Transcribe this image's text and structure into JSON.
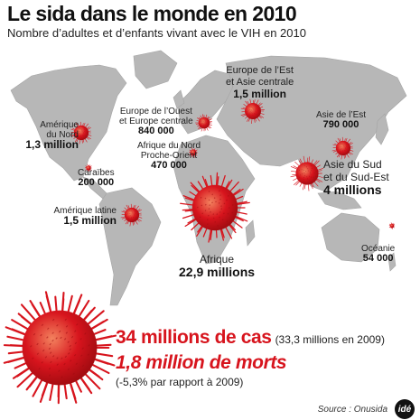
{
  "header": {
    "title": "Le sida dans le monde en 2010",
    "subtitle": "Nombre d’adultes et d’enfants vivant avec le VIH en 2010"
  },
  "colors": {
    "land": "#b7b7b7",
    "virus_red": "#d7141d",
    "virus_dark": "#a00b10",
    "virus_light": "#f3835f"
  },
  "regions": {
    "amerique_nord": {
      "name": "Amérique\ndu Nord",
      "value": "1,3 million",
      "value_num": 1300000
    },
    "caraibes": {
      "name": "Caraïbes",
      "value": "200 000",
      "value_num": 200000
    },
    "amerique_latine": {
      "name": "Amérique latine",
      "value": "1,5 million",
      "value_num": 1500000
    },
    "europe_ouest": {
      "name": "Europe de l’Ouest\net Europe centrale",
      "value": "840 000",
      "value_num": 840000
    },
    "afrique_nord": {
      "name": "Afrique du Nord\nProche-Orient",
      "value": "470 000",
      "value_num": 470000
    },
    "europe_est": {
      "name": "Europe de l’Est\net Asie centrale",
      "value": "1,5 million",
      "value_num": 1500000
    },
    "asie_est": {
      "name": "Asie de l’Est",
      "value": "790 000",
      "value_num": 790000
    },
    "asie_sud": {
      "name": "Asie du Sud\net du Sud-Est",
      "value": "4 millions",
      "value_num": 4000000
    },
    "afrique": {
      "name": "Afrique",
      "value": "22,9 millions",
      "value_num": 22900000
    },
    "oceanie": {
      "name": "Océanie",
      "value": "54 000",
      "value_num": 54000
    }
  },
  "summary": {
    "cases": "34 millions de cas",
    "cases_note": "(33,3 millions en 2009)",
    "deaths": "1,8 million de morts",
    "deaths_note": "(-5,3% par rapport à 2009)"
  },
  "footer": {
    "source": "Source : Onusida",
    "logo": "idé"
  }
}
